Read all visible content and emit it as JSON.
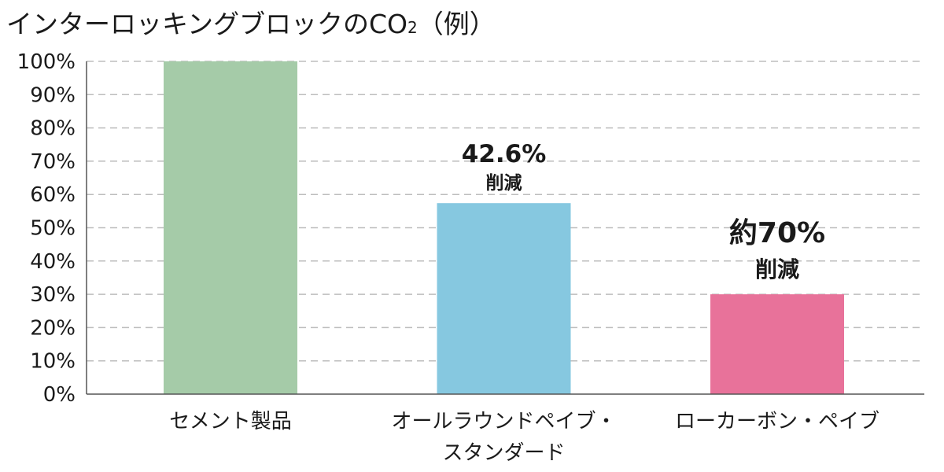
{
  "chart_data": {
    "type": "bar",
    "title_main": "インターロッキングブロックのCO",
    "title_sub": "2",
    "title_tail": "（例）",
    "categories": [
      [
        "セメント製品"
      ],
      [
        "オールラウンドペイブ・",
        "スタンダード"
      ],
      [
        "ローカーボン・ペイブ"
      ]
    ],
    "values": [
      100,
      57.4,
      30
    ],
    "colors": [
      "#a5cba8",
      "#86c8e0",
      "#e8729a"
    ],
    "ylim": [
      0,
      100
    ],
    "yticks": [
      "0%",
      "10%",
      "20%",
      "30%",
      "40%",
      "50%",
      "60%",
      "70%",
      "80%",
      "90%",
      "100%"
    ],
    "grid": true,
    "annotations": [
      null,
      {
        "main": "42.6%",
        "sub": "削減"
      },
      {
        "main": "約70%",
        "sub": "削減"
      }
    ]
  }
}
